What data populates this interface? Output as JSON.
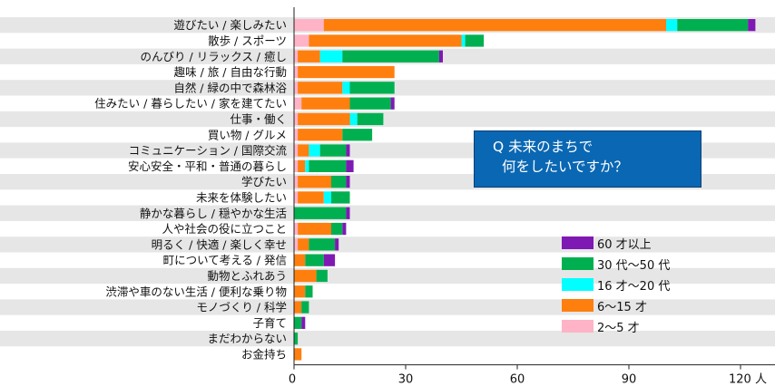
{
  "chart_data": {
    "type": "bar",
    "orientation": "horizontal",
    "stacked": true,
    "categories": [
      "遊びたい / 楽しみたい",
      "散歩 / スポーツ",
      "のんびり / リラックス / 癒し",
      "趣味 / 旅 / 自由な行動",
      "自然 / 緑の中で森林浴",
      "住みたい / 暮らしたい / 家を建てたい",
      "仕事・働く",
      "買い物 / グルメ",
      "コミュニケーション / 国際交流",
      "安心安全・平和・普通の暮らし",
      "学びたい",
      "未来を体験したい",
      "静かな暮らし / 穏やかな生活",
      "人や社会の役に立つこと",
      "明るく / 快適 / 楽しく幸せ",
      "町について考える / 発信",
      "動物とふれあう",
      "渋滞や車のない生活 / 便利な乗り物",
      "モノづくり / 科学",
      "子育て",
      "まだわからない",
      "お金持ち"
    ],
    "series": [
      {
        "name": "2～5 才",
        "color": "#ffb3c6",
        "values": [
          8,
          4,
          1,
          1,
          1,
          2,
          1,
          1,
          1,
          1,
          1,
          1,
          0,
          1,
          1,
          0,
          0,
          0,
          0,
          0,
          0,
          0
        ]
      },
      {
        "name": "6～15 才",
        "color": "#ff7f0e",
        "values": [
          92,
          41,
          6,
          26,
          12,
          13,
          14,
          12,
          3,
          2,
          9,
          7,
          0,
          9,
          3,
          3,
          6,
          3,
          2,
          0,
          0,
          2
        ]
      },
      {
        "name": "16 才～20 代",
        "color": "#00ffff",
        "values": [
          3,
          1,
          6,
          0,
          2,
          0,
          2,
          0,
          3,
          1,
          0,
          2,
          0,
          0,
          0,
          0,
          0,
          0,
          0,
          0,
          0,
          0
        ]
      },
      {
        "name": "30 代～50 代",
        "color": "#00b050",
        "values": [
          19,
          5,
          26,
          0,
          12,
          11,
          7,
          8,
          7,
          10,
          4,
          5,
          14,
          3,
          7,
          5,
          3,
          2,
          2,
          2,
          1,
          0
        ]
      },
      {
        "name": "60 才以上",
        "color": "#7f19b3",
        "values": [
          2,
          0,
          1,
          0,
          0,
          1,
          0,
          0,
          1,
          2,
          1,
          0,
          1,
          1,
          1,
          3,
          0,
          0,
          0,
          1,
          0,
          0
        ]
      }
    ],
    "xlim": [
      0,
      130
    ],
    "xticks": [
      "0",
      "30",
      "60",
      "90",
      "120 人"
    ],
    "xtick_values": [
      0,
      30,
      60,
      90,
      120
    ],
    "legend_position": "bottom-right",
    "grid": false
  },
  "annotation": {
    "line1": "Q 未来のまちで",
    "line2": "何をしたいですか？"
  },
  "colors": {
    "row_stripe": "#e6e6e6",
    "axis": "#222222",
    "box_fill": "#0a67b3"
  }
}
